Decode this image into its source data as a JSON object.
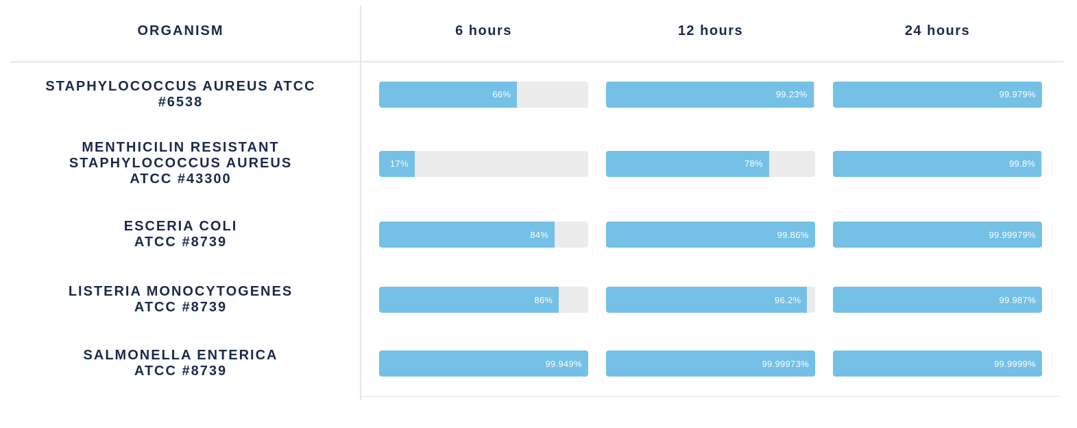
{
  "colors": {
    "accent_blue": "#74c0e6",
    "track_gray": "#ececec",
    "text_navy": "#1b2a4a",
    "divider_gray": "#e7e5e2"
  },
  "header": {
    "organism": "ORGANISM",
    "columns": [
      "6 hours",
      "12 hours",
      "24 hours"
    ]
  },
  "chart_data": {
    "type": "bar",
    "orientation": "horizontal",
    "unit": "%",
    "value_range": [
      0,
      100
    ],
    "categories": [
      "6 hours",
      "12 hours",
      "24 hours"
    ],
    "rows": [
      {
        "organism": "STAPHYLOCOCCUS AUREUS ATCC #6538",
        "organism_lines": [
          "STAPHYLOCOCCUS AUREUS ATCC",
          "#6538"
        ],
        "values": [
          66,
          99.23,
          99.979
        ],
        "labels": [
          "66%",
          "99.23%",
          "99.979%"
        ]
      },
      {
        "organism": "MENTHICILIN RESISTANT STAPHYLOCOCCUS AUREUS ATCC #43300",
        "organism_lines": [
          "MENTHICILIN RESISTANT",
          "STAPHYLOCOCCUS AUREUS",
          "ATCC #43300"
        ],
        "values": [
          17,
          78,
          99.8
        ],
        "labels": [
          "17%",
          "78%",
          "99.8%"
        ]
      },
      {
        "organism": "ESCERIA COLI ATCC #8739",
        "organism_lines": [
          "ESCERIA COLI",
          "ATCC #8739"
        ],
        "values": [
          84,
          99.86,
          99.99979
        ],
        "labels": [
          "84%",
          "99.86%",
          "99.99979%"
        ]
      },
      {
        "organism": "LISTERIA MONOCYTOGENES ATCC #8739",
        "organism_lines": [
          "LISTERIA MONOCYTOGENES",
          "ATCC #8739"
        ],
        "values": [
          86,
          96.2,
          99.987
        ],
        "labels": [
          "86%",
          "96.2%",
          "99.987%"
        ]
      },
      {
        "organism": "SALMONELLA ENTERICA ATCC #8739",
        "organism_lines": [
          "SALMONELLA ENTERICA",
          "ATCC #8739"
        ],
        "values": [
          99.949,
          99.99973,
          99.9999
        ],
        "labels": [
          "99.949%",
          "99.99973%",
          "99.9999%"
        ]
      }
    ]
  }
}
